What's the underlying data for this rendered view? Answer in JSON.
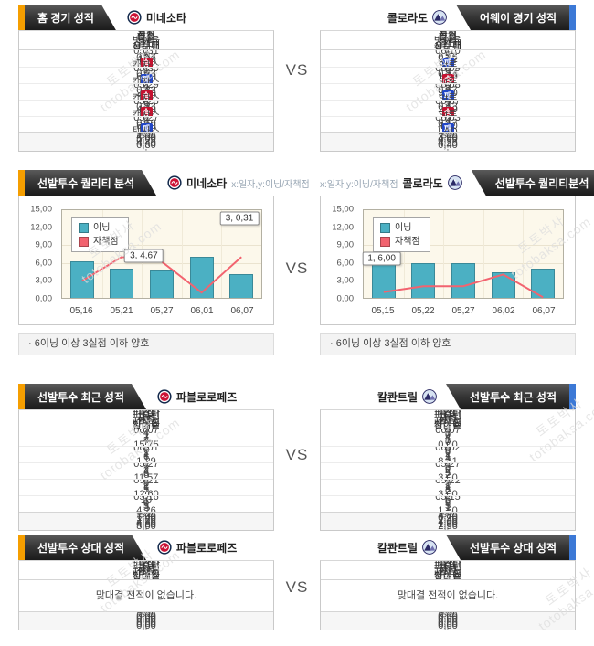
{
  "page": {
    "vs": "VS"
  },
  "watermark": {
    "kr": "토토박사",
    "en": "totobaksa.com"
  },
  "badges": {
    "win": "승",
    "loss": "패"
  },
  "game_record": {
    "left": {
      "tab": "홈 경기 성적",
      "team": "미네소타",
      "columns": [
        "일자",
        "득점",
        "실점",
        "타율",
        "방어율",
        "홈런",
        "승무패",
        "상대팀"
      ],
      "rows": [
        [
          "05,31",
          "7",
          "6",
          "0,27",
          "4,00",
          "2",
          "W",
          "캔자스"
        ],
        [
          "05,30",
          "1",
          "6",
          "0,23",
          "6,00",
          "0",
          "L",
          "캔자스"
        ],
        [
          "05,29",
          "4",
          "2",
          "0,32",
          "2,00",
          "0",
          "W",
          "캔자스"
        ],
        [
          "05,28",
          "6",
          "5",
          "0,23",
          "4,00",
          "2",
          "W",
          "캔자스"
        ],
        [
          "05,27",
          "2",
          "6",
          "0,10",
          "6,00",
          "0",
          "L",
          "텍사스"
        ]
      ],
      "avg": [
        "평균",
        "4,00",
        "5,00",
        "0,23",
        "4,40",
        "0,80",
        "·",
        "·"
      ]
    },
    "right": {
      "tab": "어웨이 경기 성적",
      "team": "콜로라도",
      "columns": [
        "일자",
        "득점",
        "실점",
        "타율",
        "방어율",
        "홈런",
        "승무패",
        "상대팀"
      ],
      "rows": [
        [
          "06,10",
          "1",
          "5",
          "0,16",
          "5,62",
          "0",
          "L",
          "St루"
        ],
        [
          "06,09",
          "6",
          "5",
          "0,34",
          "1,00",
          "2",
          "W",
          "St루"
        ],
        [
          "06,08",
          "5",
          "8",
          "0,27",
          "9,00",
          "0",
          "L",
          "St루"
        ],
        [
          "06,07",
          "3",
          "2",
          "0,13",
          "2,00",
          "0",
          "W",
          "St루"
        ],
        [
          "06,03",
          "0",
          "4",
          "0,17",
          "4,50",
          "0",
          "L",
          "LAD"
        ]
      ],
      "avg": [
        "평균",
        "3,00",
        "4,80",
        "0,22",
        "4,29",
        "0,40",
        "·",
        "·"
      ]
    }
  },
  "quality": {
    "left_tab": "선발투수 퀄리티 분석",
    "right_tab": "선발투수 퀄리티분석",
    "left_team": "미네소타",
    "right_team": "콜로라도",
    "axis_note": "x:일자,y:이닝/자책점",
    "bullet": "·",
    "note": "6이닝 이상 3실점 이하 양호"
  },
  "recent": {
    "left": {
      "tab": "선발투수 최근 성적",
      "team": "파블로로페즈",
      "columns": [
        "일자",
        "피안타",
        "피홈런",
        "포볼",
        "삼진",
        "자책점",
        "방어율",
        "상대팀"
      ],
      "rows": [
        [
          "06,07",
          "4",
          "1",
          "7",
          "4",
          "7",
          "15,75",
          ""
        ],
        [
          "06,01",
          "6",
          "1",
          "1",
          "6",
          "1",
          "1,29",
          ""
        ],
        [
          "05,27",
          "7",
          "2",
          "2",
          "6",
          "6",
          "11,57",
          ""
        ],
        [
          "05,21",
          "8",
          "2",
          "1",
          "5",
          "7",
          "12,60",
          ""
        ],
        [
          "05,16",
          "10",
          "1",
          "0",
          "3",
          "3",
          "4,26",
          ""
        ]
      ],
      "avg": [
        "평균",
        "7,00",
        "1,40",
        "2,20",
        "4,80",
        "4,80",
        "8,00",
        "·"
      ]
    },
    "right": {
      "tab": "선발투수 최근 성적",
      "team": "칼콴트릴",
      "columns": [
        "일자",
        "피안타",
        "피홈런",
        "포볼",
        "삼진",
        "자책점",
        "방어율",
        "상대팀"
      ],
      "rows": [
        [
          "06,07",
          "3",
          "0",
          "4",
          "1",
          "0",
          "0,00",
          ""
        ],
        [
          "06,02",
          "9",
          "0",
          "2",
          "1",
          "4",
          "8,31",
          ""
        ],
        [
          "05,27",
          "3",
          "0",
          "2",
          "5",
          "2",
          "3,00",
          ""
        ],
        [
          "05,22",
          "3",
          "1",
          "1",
          "8",
          "2",
          "3,00",
          ""
        ],
        [
          "05,15",
          "6",
          "0",
          "3",
          "5",
          "1",
          "1,50",
          ""
        ]
      ],
      "avg": [
        "평균",
        "4,80",
        "0,20",
        "2,40",
        "4,00",
        "1,80",
        "2,96",
        "·"
      ]
    }
  },
  "head2head": {
    "left": {
      "tab": "선발투수 상대 성적",
      "team": "파블로로페즈",
      "columns": [
        "일자",
        "피안타",
        "피홈런",
        "포볼",
        "삼진",
        "자책점",
        "방어율",
        "상대팀"
      ],
      "empty": "맞대결 전적이 없습니다.",
      "avg": [
        "평균",
        "0,00",
        "0,00",
        "0,00",
        "0,00",
        "0,00",
        "0,00",
        "·"
      ]
    },
    "right": {
      "tab": "선발투수 상대 성적",
      "team": "칼콴트릴",
      "columns": [
        "일자",
        "피안타",
        "피홈런",
        "포볼",
        "삼진",
        "자책점",
        "방어율",
        "상대팀"
      ],
      "empty": "맞대결 전적이 없습니다.",
      "avg": [
        "평균",
        "0,00",
        "0,00",
        "0,00",
        "0,00",
        "0,00",
        "0,00",
        "·"
      ]
    }
  },
  "chart_data": [
    {
      "type": "bar",
      "title": "선발투수 퀄리티 분석 - 미네소타",
      "xlabel": "일자",
      "ylabel": "이닝/자책점",
      "categories": [
        "05,16",
        "05,21",
        "05,27",
        "06,01",
        "06,07"
      ],
      "series": [
        {
          "name": "이닝",
          "type": "bar",
          "color": "#4bb0c3",
          "values": [
            6.3,
            5.0,
            4.7,
            7.0,
            4.0
          ]
        },
        {
          "name": "자책점",
          "type": "line",
          "color": "#f2636f",
          "values": [
            2.9,
            7.0,
            6.2,
            0.9,
            7.0
          ]
        }
      ],
      "ylim": [
        0,
        15
      ],
      "ytick_values": [
        0,
        3,
        6,
        9,
        12,
        15
      ],
      "yticks": [
        "0,00",
        "3,00",
        "6,00",
        "9,00",
        "12,00",
        "15,00"
      ],
      "grid": true,
      "legend_position": "top-left",
      "tooltips": [
        {
          "text": "3, 4,67",
          "x": 41,
          "y": 52
        },
        {
          "text": "3, 0,31",
          "x": 89,
          "y": 9
        }
      ]
    },
    {
      "type": "bar",
      "title": "선발투수 퀄리티분석 - 콜로라도",
      "xlabel": "일자",
      "ylabel": "이닝/자책점",
      "categories": [
        "05,15",
        "05,22",
        "05,27",
        "06,02",
        "06,07"
      ],
      "series": [
        {
          "name": "이닝",
          "type": "bar",
          "color": "#4bb0c3",
          "values": [
            5.9,
            5.9,
            5.9,
            4.3,
            5.0
          ]
        },
        {
          "name": "자책점",
          "type": "line",
          "color": "#f2636f",
          "values": [
            1.0,
            2.0,
            2.0,
            4.0,
            0.1
          ]
        }
      ],
      "ylim": [
        0,
        15
      ],
      "ytick_values": [
        0,
        3,
        6,
        9,
        12,
        15
      ],
      "yticks": [
        "0,00",
        "3,00",
        "6,00",
        "9,00",
        "12,00",
        "15,00"
      ],
      "grid": true,
      "legend_position": "top-left",
      "tooltips": [
        {
          "text": "1, 6,00",
          "x": 9,
          "y": 55
        }
      ]
    }
  ]
}
